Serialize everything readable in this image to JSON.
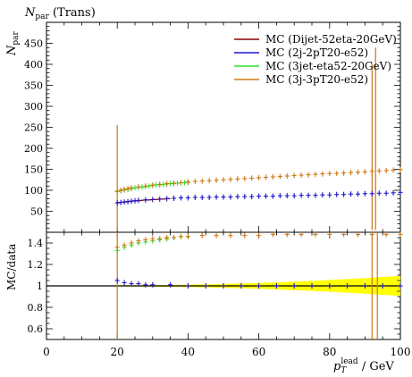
{
  "title": {
    "main": "N",
    "sub": "par",
    "suffix": " (Trans)"
  },
  "ylabel_upper": {
    "main": "N",
    "sub": "par"
  },
  "ylabel_lower": "MC/data",
  "xlabel": {
    "p": "p",
    "sub": "T",
    "sup": "lead",
    "unit": " / GeV"
  },
  "colors": {
    "dijet": "#8b0000",
    "twoj": "#1e14c8",
    "threejet": "#2ee02e",
    "threej": "#d07814",
    "ref_band": "#ffff00",
    "ref_line": "#000000"
  },
  "chart_data": [
    {
      "type": "scatter",
      "title": "N par (Trans)",
      "xlabel": "p_T^lead / GeV",
      "ylabel": "N par",
      "xlim": [
        0,
        100
      ],
      "ylim": [
        0,
        500
      ],
      "yticks": [
        "50",
        "100",
        "150",
        "200",
        "250",
        "300",
        "350",
        "400",
        "450"
      ],
      "legend_placement": "top-right",
      "series": [
        {
          "name": "MC (Dijet-52eta-20GeV)",
          "color_key": "dijet",
          "x": [
            20,
            21,
            22,
            23,
            24,
            25,
            26,
            27,
            28,
            29,
            30,
            31,
            32,
            33,
            34,
            35
          ],
          "y": [
            71,
            71,
            72,
            73,
            74,
            75,
            75,
            76,
            77,
            77,
            78,
            78,
            79,
            79,
            80,
            80
          ]
        },
        {
          "name": "MC (2j-2pT20-e52)",
          "color_key": "twoj",
          "x": [
            20,
            21,
            22,
            23,
            24,
            25,
            26,
            28,
            30,
            32,
            34,
            36,
            38,
            40,
            42,
            44,
            46,
            48,
            50,
            52,
            54,
            56,
            58,
            60,
            62,
            64,
            66,
            68,
            70,
            72,
            74,
            76,
            78,
            80,
            82,
            84,
            86,
            88,
            90,
            92,
            94,
            96,
            98,
            100
          ],
          "y": [
            70,
            71,
            72,
            73,
            74,
            75,
            76,
            77,
            78,
            79,
            80,
            81,
            82,
            82,
            83,
            83,
            83,
            84,
            84,
            84,
            85,
            85,
            85,
            86,
            86,
            86,
            87,
            87,
            87,
            88,
            88,
            88,
            89,
            89,
            90,
            90,
            91,
            91,
            92,
            92,
            93,
            93,
            94,
            95
          ]
        },
        {
          "name": "MC (3jet-eta52-20GeV)",
          "color_key": "threejet",
          "x": [
            20,
            21,
            22,
            23,
            24,
            25,
            26,
            27,
            28,
            29,
            30,
            31,
            32,
            33,
            34,
            35,
            36,
            37,
            38,
            39,
            40
          ],
          "y": [
            97,
            99,
            101,
            102,
            104,
            106,
            107,
            108,
            109,
            110,
            112,
            113,
            113,
            114,
            115,
            116,
            116,
            117,
            118,
            118,
            119
          ]
        },
        {
          "name": "MC (3j-3pT20-e52)",
          "color_key": "threej",
          "x": [
            20,
            21,
            22,
            23,
            24,
            26,
            28,
            30,
            32,
            34,
            36,
            38,
            40,
            42,
            44,
            46,
            48,
            50,
            52,
            54,
            56,
            58,
            60,
            62,
            64,
            66,
            68,
            70,
            72,
            74,
            76,
            78,
            80,
            82,
            84,
            86,
            88,
            90,
            92,
            94,
            96,
            98,
            100
          ],
          "y": [
            98,
            100,
            102,
            104,
            106,
            108,
            110,
            112,
            114,
            116,
            117,
            118,
            120,
            121,
            122,
            123,
            124,
            125,
            126,
            127,
            128,
            129,
            130,
            131,
            132,
            133,
            134,
            135,
            136,
            137,
            138,
            139,
            140,
            140,
            141,
            142,
            143,
            144,
            145,
            146,
            147,
            148,
            149
          ]
        }
      ]
    },
    {
      "type": "scatter",
      "title": "",
      "xlabel": "p_T^lead / GeV",
      "ylabel": "MC/data",
      "xlim": [
        0,
        100
      ],
      "ylim": [
        0.5,
        1.5
      ],
      "xticks": [
        "0",
        "20",
        "40",
        "60",
        "80",
        "100"
      ],
      "yticks": [
        "0.6",
        "0.8",
        "1",
        "1.2",
        "1.4"
      ],
      "series": [
        {
          "name": "MC (2j-2pT20-e52)",
          "color_key": "twoj",
          "x": [
            20,
            22,
            24,
            26,
            28,
            30,
            35,
            40,
            45,
            50,
            55,
            60,
            65,
            70,
            75,
            80,
            85,
            90,
            95,
            100
          ],
          "y": [
            1.05,
            1.03,
            1.02,
            1.02,
            1.01,
            1.01,
            1.01,
            1.0,
            1.0,
            1.0,
            1.0,
            1.0,
            1.0,
            1.0,
            1.0,
            1.0,
            1.0,
            1.0,
            1.0,
            1.0
          ]
        },
        {
          "name": "MC (3jet-eta52-20GeV)",
          "color_key": "threejet",
          "x": [
            20,
            22,
            24,
            26,
            28,
            30,
            32,
            34,
            36,
            38,
            40
          ],
          "y": [
            1.33,
            1.36,
            1.38,
            1.4,
            1.41,
            1.42,
            1.43,
            1.44,
            1.45,
            1.46,
            1.46
          ]
        },
        {
          "name": "MC (3j-3pT20-e52)",
          "color_key": "threej",
          "x": [
            20,
            22,
            24,
            26,
            28,
            30,
            32,
            34,
            36,
            38,
            40,
            44,
            48,
            52,
            56,
            60,
            64,
            68,
            72,
            76,
            80,
            84,
            88,
            92,
            96,
            100
          ],
          "y": [
            1.36,
            1.38,
            1.4,
            1.42,
            1.43,
            1.44,
            1.44,
            1.45,
            1.45,
            1.46,
            1.46,
            1.47,
            1.47,
            1.47,
            1.47,
            1.47,
            1.48,
            1.48,
            1.48,
            1.48,
            1.48,
            1.48,
            1.48,
            1.48,
            1.48,
            1.48
          ]
        }
      ]
    }
  ]
}
